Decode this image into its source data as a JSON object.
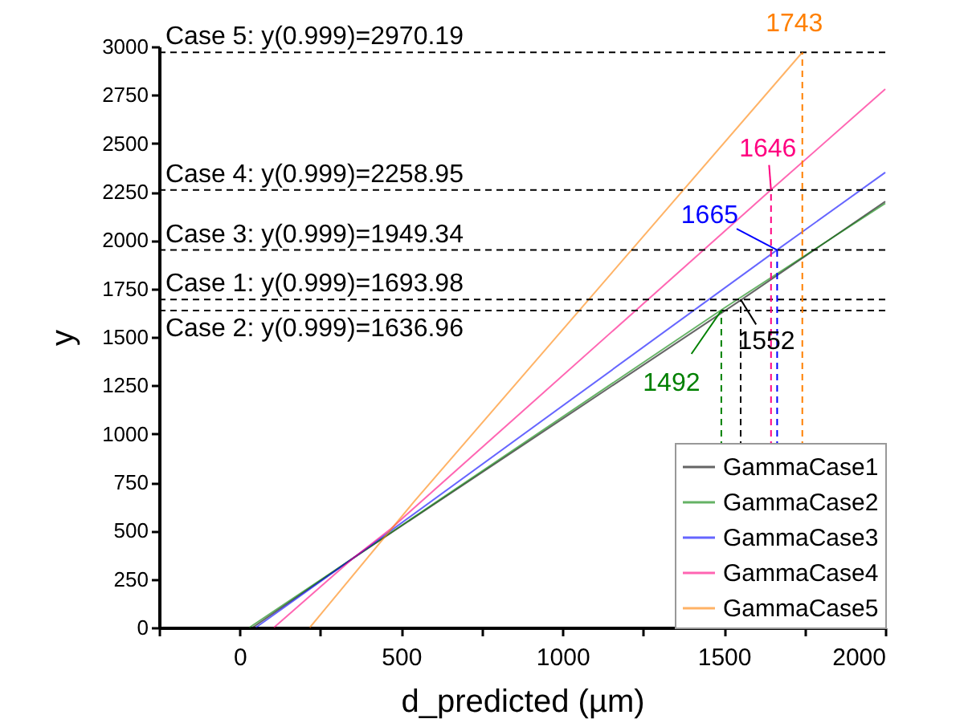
{
  "chart_data": {
    "type": "line",
    "xlabel": "d_predicted (µm)",
    "ylabel": "y",
    "xlim": [
      -250,
      2000
    ],
    "xticks": [
      {
        "value": -250,
        "label": null
      },
      0,
      {
        "value": 250,
        "label": null
      },
      500,
      {
        "value": 750,
        "label": null
      },
      1000,
      {
        "value": 1250,
        "label": null
      },
      1500,
      {
        "value": 1750,
        "label": null
      },
      2000
    ],
    "ylim": [
      0,
      3000
    ],
    "yticks": [
      0,
      250,
      500,
      750,
      1000,
      1250,
      1500,
      1750,
      2000,
      2250,
      2500,
      2750,
      3000
    ],
    "grid": false,
    "legend": "bottom right",
    "line_style": "solid",
    "marker": "none",
    "series": [
      {
        "name": "GammaCase1",
        "color": "#000000",
        "x": [
          40,
          353,
          1552,
          2000
        ],
        "values": [
          0,
          360,
          1690,
          2200
        ]
      },
      {
        "name": "GammaCase2",
        "color": "#008000",
        "x": [
          30,
          353,
          468,
          1492,
          2000
        ],
        "values": [
          0,
          360,
          490,
          1640,
          2190
        ]
      },
      {
        "name": "GammaCase3",
        "color": "#0000ff",
        "x": [
          50,
          353,
          468,
          1665,
          2000
        ],
        "values": [
          0,
          360,
          500,
          1950,
          2350
        ]
      },
      {
        "name": "GammaCase4",
        "color": "#ff0080",
        "x": [
          106,
          353,
          468,
          1646,
          2000
        ],
        "values": [
          0,
          360,
          510,
          2260,
          2780
        ]
      },
      {
        "name": "GammaCase5",
        "color": "#ff8000",
        "x": [
          217,
          540,
          1743
        ],
        "values": [
          0,
          650,
          2970
        ]
      }
    ],
    "ref_lines": [
      {
        "axis": "y",
        "value": 2970.19,
        "label": "Case 5: y(0.999)=2970.19",
        "color": "#000000",
        "line_style": "dashed"
      },
      {
        "axis": "y",
        "value": 2258.95,
        "label": "Case 4: y(0.999)=2258.95",
        "color": "#000000",
        "line_style": "dashed"
      },
      {
        "axis": "y",
        "value": 1949.34,
        "label": "Case 3: y(0.999)=1949.34",
        "color": "#000000",
        "line_style": "dashed"
      },
      {
        "axis": "y",
        "value": 1693.98,
        "label": "Case 1: y(0.999)=1693.98",
        "color": "#000000",
        "line_style": "dashed"
      },
      {
        "axis": "y",
        "value": 1636.96,
        "label": "Case 2: y(0.999)=1636.96",
        "color": "#000000",
        "line_style": "dashed"
      },
      {
        "axis": "x",
        "value": 1743,
        "color": "#ff8000",
        "line_style": "dashed"
      },
      {
        "axis": "x",
        "value": 1646,
        "color": "#ff0080",
        "line_style": "dashed"
      },
      {
        "axis": "x",
        "value": 1665,
        "color": "#0000ff",
        "line_style": "dashed"
      },
      {
        "axis": "x",
        "value": 1552,
        "color": "#000000",
        "line_style": "dashed"
      },
      {
        "axis": "x",
        "value": 1492,
        "color": "#008000",
        "line_style": "dashed"
      }
    ],
    "annotations": [
      {
        "text": "1743",
        "x": 1743,
        "y": 2970.19
      },
      {
        "text": "1646",
        "x": 1646,
        "y": 2258.95
      },
      {
        "text": "1665",
        "x": 1665,
        "y": 1949.34
      },
      {
        "text": "1552",
        "x": 1552,
        "y": 1693.98
      },
      {
        "text": "1492",
        "x": 1492,
        "y": 1636.96
      }
    ]
  }
}
